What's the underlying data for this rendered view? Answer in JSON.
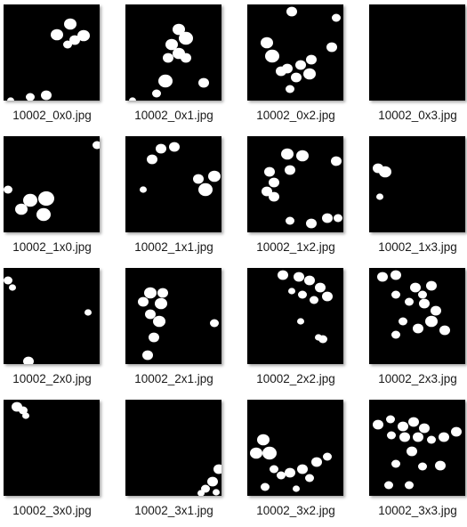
{
  "colors": {
    "background": "#ffffff",
    "thumb_background": "#000000",
    "blob": "#ffffff",
    "caption_text": "#1a1a1a"
  },
  "files": [
    {
      "name": "10002_0x0.jpg",
      "row": 0,
      "col": 0
    },
    {
      "name": "10002_0x1.jpg",
      "row": 0,
      "col": 1
    },
    {
      "name": "10002_0x2.jpg",
      "row": 0,
      "col": 2
    },
    {
      "name": "10002_0x3.jpg",
      "row": 0,
      "col": 3
    },
    {
      "name": "10002_1x0.jpg",
      "row": 1,
      "col": 0
    },
    {
      "name": "10002_1x1.jpg",
      "row": 1,
      "col": 1
    },
    {
      "name": "10002_1x2.jpg",
      "row": 1,
      "col": 2
    },
    {
      "name": "10002_1x3.jpg",
      "row": 1,
      "col": 3
    },
    {
      "name": "10002_2x0.jpg",
      "row": 2,
      "col": 0
    },
    {
      "name": "10002_2x1.jpg",
      "row": 2,
      "col": 1
    },
    {
      "name": "10002_2x2.jpg",
      "row": 2,
      "col": 2
    },
    {
      "name": "10002_2x3.jpg",
      "row": 2,
      "col": 3
    },
    {
      "name": "10002_3x0.jpg",
      "row": 3,
      "col": 0
    },
    {
      "name": "10002_3x1.jpg",
      "row": 3,
      "col": 1
    },
    {
      "name": "10002_3x2.jpg",
      "row": 3,
      "col": 2
    },
    {
      "name": "10002_3x3.jpg",
      "row": 3,
      "col": 3
    }
  ]
}
